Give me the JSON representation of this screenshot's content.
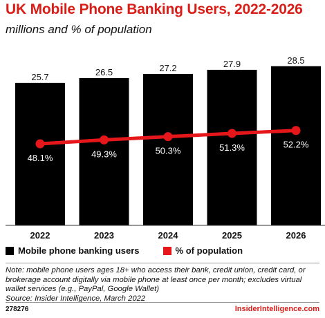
{
  "header": {
    "title": "UK Mobile Phone Banking Users, 2022-2026",
    "subtitle": "millions and % of population"
  },
  "chart_data": {
    "type": "bar",
    "categories": [
      "2022",
      "2023",
      "2024",
      "2025",
      "2026"
    ],
    "series": [
      {
        "name": "Mobile phone banking users",
        "type": "bar",
        "values": [
          25.7,
          26.5,
          27.2,
          27.9,
          28.5
        ],
        "labels": [
          "25.7",
          "26.5",
          "27.2",
          "27.9",
          "28.5"
        ],
        "color": "#000000"
      },
      {
        "name": "% of population",
        "type": "line",
        "values": [
          48.1,
          49.3,
          50.3,
          51.3,
          52.2
        ],
        "labels": [
          "48.1%",
          "49.3%",
          "50.3%",
          "51.3%",
          "52.2%"
        ],
        "color": "#e5171b"
      }
    ],
    "grid": false,
    "legend": "bottom-left"
  },
  "footer": {
    "note": "Note: mobile phone users ages 18+ who access their bank, credit union, credit card, or brokerage account digitally via mobile phone at least once per month; excludes virtual wallet services (e.g., PayPal, Google Wallet)",
    "source": "Source: Insider Intelligence, March 2022",
    "id": "278276",
    "brand": "InsiderIntelligence.com"
  }
}
